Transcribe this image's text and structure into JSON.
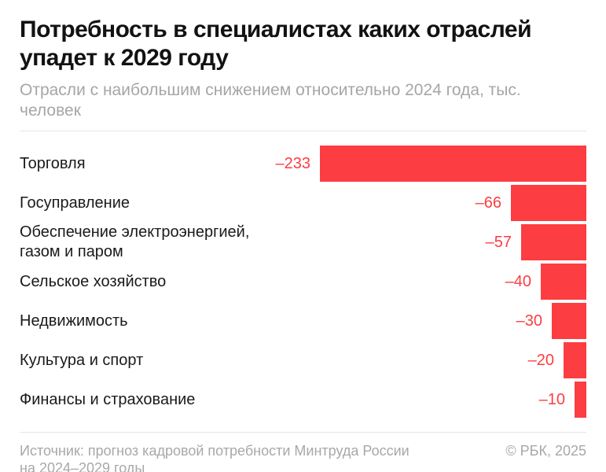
{
  "header": {
    "title_lines": [
      "Потребность в специалистах каких отраслей",
      "упадет к 2029 году"
    ],
    "subtitle": "Отрасли с наибольшим снижением относительно 2024 года, тыс. человек"
  },
  "chart_data": {
    "type": "bar",
    "orientation": "horizontal",
    "alignment": "right",
    "title": "Потребность в специалистах каких отраслей упадет к 2029 году",
    "subtitle": "Отрасли с наибольшим снижением относительно 2024 года, тыс. человек",
    "unit": "тыс. человек",
    "baseline_year": "2024",
    "target_year": "2029",
    "categories": [
      "Торговля",
      "Госуправление",
      "Обеспечение электроэнергией, газом и паром",
      "Сельское хозяйство",
      "Недвижимость",
      "Культура и спорт",
      "Финансы и страхование"
    ],
    "values": [
      -233,
      -66,
      -57,
      -40,
      -30,
      -20,
      -10
    ],
    "value_labels": [
      "–233",
      "–66",
      "–57",
      "–40",
      "–30",
      "–20",
      "–10"
    ],
    "bar_color": "#fc3d41",
    "max_abs_value": 233,
    "xlim": [
      -233,
      0
    ],
    "grid": false,
    "legend": false
  },
  "footer": {
    "source_lines": [
      "Источник: прогноз кадровой потребности Минтруда России",
      "на 2024–2029 годы"
    ],
    "copyright": "© РБК, 2025"
  },
  "colors": {
    "accent_red": "#fc3d41",
    "title_text": "#121214",
    "label_text": "#1a1a1c",
    "muted_text": "#a8a8aa",
    "divider": "#e4e4e6",
    "background": "#ffffff"
  }
}
